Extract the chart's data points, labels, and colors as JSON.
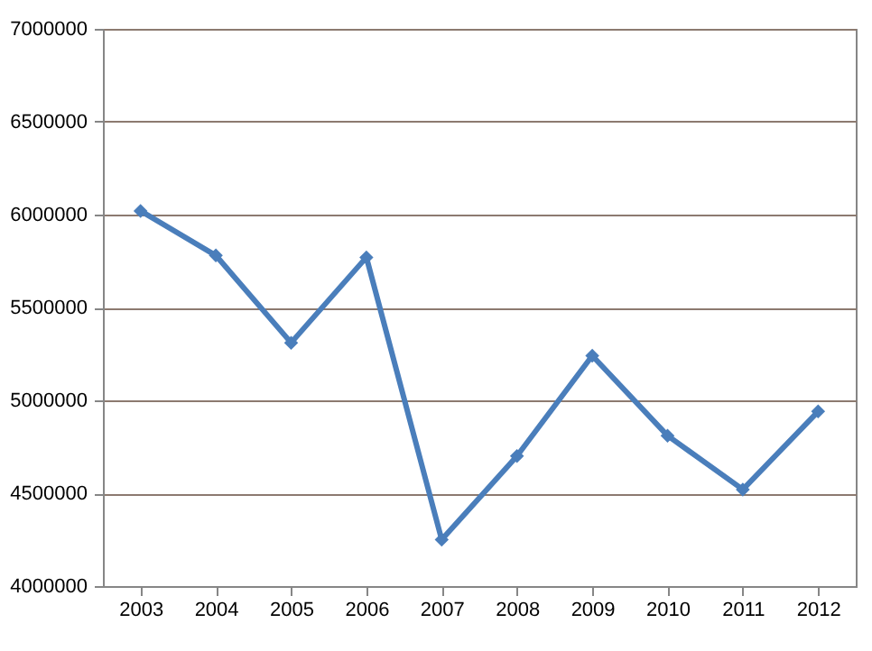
{
  "chart_data": {
    "type": "line",
    "categories": [
      "2003",
      "2004",
      "2005",
      "2006",
      "2007",
      "2008",
      "2009",
      "2010",
      "2011",
      "2012"
    ],
    "series": [
      {
        "color": "#4a7ebb",
        "values": [
          6020000,
          5780000,
          5310000,
          5770000,
          4250000,
          4700000,
          5240000,
          4810000,
          4520000,
          4940000
        ]
      }
    ],
    "ylim": [
      4000000,
      7000000
    ],
    "yticks": [
      4000000,
      4500000,
      5000000,
      5500000,
      6000000,
      6500000,
      7000000
    ],
    "grid": "y",
    "marker": "diamond",
    "line_style": "solid"
  }
}
